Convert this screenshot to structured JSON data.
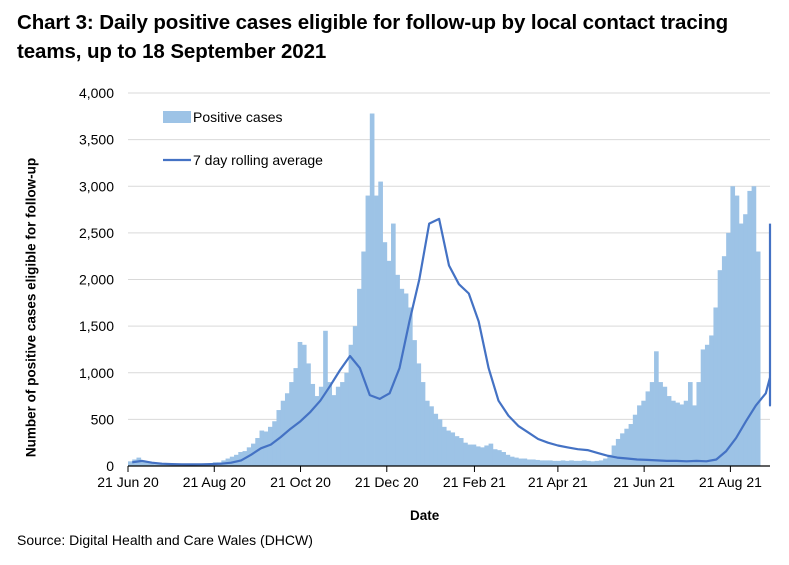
{
  "chart_data": {
    "type": "bar+line",
    "title": "Chart 3: Daily positive cases eligible for follow-up by local contact tracing teams, up to 18 September 2021",
    "xlabel": "Date",
    "ylabel": "Number of positive cases eligible for follow-up",
    "source": "Source: Digital Health and Care Wales (DHCW)",
    "x_start_date": "2020-06-21",
    "x_end_date": "2021-09-18",
    "ylim": [
      0,
      4000
    ],
    "yticks": [
      0,
      500,
      1000,
      1500,
      2000,
      2500,
      3000,
      3500,
      4000
    ],
    "ytick_labels": [
      "0",
      "500",
      "1,000",
      "1,500",
      "2,000",
      "2,500",
      "3,000",
      "3,500",
      "4,000"
    ],
    "xticks_days": [
      0,
      61,
      122,
      183,
      245,
      304,
      365,
      426
    ],
    "xtick_labels": [
      "21 Jun 20",
      "21 Aug 20",
      "21 Oct 20",
      "21 Dec 20",
      "21 Feb 21",
      "21 Apr 21",
      "21 Jun 21",
      "21 Aug 21"
    ],
    "grid": "horizontal",
    "legend": {
      "position": "top-left",
      "entries": [
        "Positive cases",
        "7 day rolling average"
      ]
    },
    "colors": {
      "cases": "#9dc3e6",
      "rolling": "#4472c4",
      "grid": "#d9d9d9",
      "axis": "#000000"
    },
    "series": [
      {
        "name": "Positive cases",
        "type": "bar",
        "step_days": 3,
        "values": [
          50,
          70,
          90,
          60,
          40,
          30,
          20,
          20,
          15,
          15,
          20,
          15,
          20,
          15,
          15,
          20,
          20,
          25,
          20,
          30,
          40,
          40,
          60,
          80,
          100,
          120,
          150,
          160,
          200,
          240,
          300,
          380,
          370,
          420,
          480,
          600,
          700,
          780,
          900,
          1050,
          1330,
          1300,
          1100,
          880,
          750,
          850,
          1450,
          900,
          760,
          850,
          900,
          1000,
          1300,
          1500,
          1900,
          2300,
          2900,
          3780,
          2900,
          3050,
          2400,
          2200,
          2600,
          2050,
          1900,
          1850,
          1700,
          1350,
          1100,
          900,
          700,
          640,
          560,
          500,
          420,
          380,
          360,
          320,
          300,
          250,
          230,
          230,
          210,
          200,
          220,
          240,
          180,
          170,
          150,
          120,
          100,
          90,
          80,
          80,
          70,
          70,
          65,
          60,
          60,
          60,
          55,
          55,
          60,
          55,
          60,
          55,
          55,
          60,
          55,
          50,
          55,
          60,
          80,
          120,
          220,
          290,
          350,
          400,
          450,
          550,
          650,
          700,
          800,
          900,
          1230,
          900,
          850,
          750,
          700,
          680,
          660,
          700,
          900,
          650,
          900,
          1250,
          1300,
          1400,
          1700,
          2100,
          2250,
          2500,
          3000,
          2900,
          2600,
          2700,
          2950,
          3000,
          2300
        ]
      },
      {
        "name": "7 day rolling average",
        "type": "line",
        "step_days": 7,
        "values": [
          40,
          55,
          35,
          25,
          20,
          18,
          17,
          18,
          20,
          25,
          35,
          60,
          120,
          190,
          230,
          310,
          400,
          480,
          580,
          700,
          860,
          1030,
          1180,
          1050,
          760,
          720,
          780,
          1050,
          1550,
          2000,
          2600,
          2650,
          2150,
          1950,
          1850,
          1550,
          1050,
          700,
          540,
          430,
          360,
          290,
          250,
          220,
          200,
          180,
          170,
          140,
          110,
          90,
          80,
          70,
          65,
          60,
          55,
          55,
          50,
          55,
          50,
          70,
          160,
          300,
          480,
          650,
          780,
          950,
          800,
          720,
          650,
          700,
          980,
          1500,
          1950,
          2250,
          2550,
          2350,
          2580,
          2600
        ]
      }
    ]
  }
}
